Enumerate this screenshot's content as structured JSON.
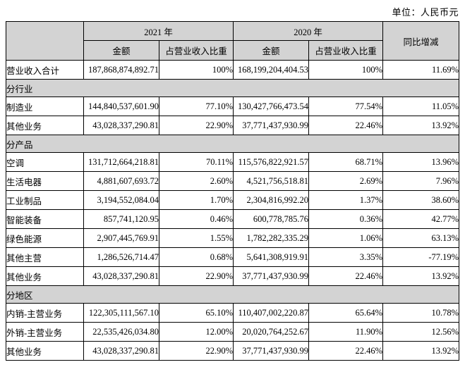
{
  "unit_label": "单位：人民币元",
  "table": {
    "col_headers": {
      "year_2021": "2021 年",
      "year_2020": "2020 年",
      "amount_2021": "金额",
      "share_2021": "占营业收入比重",
      "amount_2020": "金额",
      "share_2020": "占营业收入比重",
      "yoy": "同比增减"
    },
    "colors": {
      "header_bg": "#d3d3d3",
      "section_bg": "#d3d3d3",
      "border": "#000000"
    },
    "rows": [
      {
        "type": "data",
        "label": "营业收入合计",
        "amount_2021": "187,868,874,892.71",
        "share_2021": "100%",
        "amount_2020": "168,199,204,404.53",
        "share_2020": "100%",
        "yoy": "11.69%"
      },
      {
        "type": "section",
        "label": "分行业"
      },
      {
        "type": "data",
        "label": "制造业",
        "amount_2021": "144,840,537,601.90",
        "share_2021": "77.10%",
        "amount_2020": "130,427,766,473.54",
        "share_2020": "77.54%",
        "yoy": "11.05%"
      },
      {
        "type": "data",
        "label": "其他业务",
        "amount_2021": "43,028,337,290.81",
        "share_2021": "22.90%",
        "amount_2020": "37,771,437,930.99",
        "share_2020": "22.46%",
        "yoy": "13.92%"
      },
      {
        "type": "section",
        "label": "分产品"
      },
      {
        "type": "data",
        "label": "空调",
        "amount_2021": "131,712,664,218.81",
        "share_2021": "70.11%",
        "amount_2020": "115,576,822,921.57",
        "share_2020": "68.71%",
        "yoy": "13.96%"
      },
      {
        "type": "data",
        "label": "生活电器",
        "amount_2021": "4,881,607,693.72",
        "share_2021": "2.60%",
        "amount_2020": "4,521,756,518.81",
        "share_2020": "2.69%",
        "yoy": "7.96%"
      },
      {
        "type": "data",
        "label": "工业制品",
        "amount_2021": "3,194,552,084.04",
        "share_2021": "1.70%",
        "amount_2020": "2,304,816,992.20",
        "share_2020": "1.37%",
        "yoy": "38.60%"
      },
      {
        "type": "data",
        "label": "智能装备",
        "amount_2021": "857,741,120.95",
        "share_2021": "0.46%",
        "amount_2020": "600,778,785.76",
        "share_2020": "0.36%",
        "yoy": "42.77%"
      },
      {
        "type": "data",
        "label": "绿色能源",
        "amount_2021": "2,907,445,769.91",
        "share_2021": "1.55%",
        "amount_2020": "1,782,282,335.29",
        "share_2020": "1.06%",
        "yoy": "63.13%"
      },
      {
        "type": "data",
        "label": "其他主营",
        "amount_2021": "1,286,526,714.47",
        "share_2021": "0.68%",
        "amount_2020": "5,641,308,919.91",
        "share_2020": "3.35%",
        "yoy": "-77.19%"
      },
      {
        "type": "data",
        "label": "其他业务",
        "amount_2021": "43,028,337,290.81",
        "share_2021": "22.90%",
        "amount_2020": "37,771,437,930.99",
        "share_2020": "22.46%",
        "yoy": "13.92%"
      },
      {
        "type": "section",
        "label": "分地区"
      },
      {
        "type": "data",
        "label": "内销-主营业务",
        "amount_2021": "122,305,111,567.10",
        "share_2021": "65.10%",
        "amount_2020": "110,407,002,220.87",
        "share_2020": "65.64%",
        "yoy": "10.78%"
      },
      {
        "type": "data",
        "label": "外销-主营业务",
        "amount_2021": "22,535,426,034.80",
        "share_2021": "12.00%",
        "amount_2020": "20,020,764,252.67",
        "share_2020": "11.90%",
        "yoy": "12.56%"
      },
      {
        "type": "data",
        "label": "其他业务",
        "amount_2021": "43,028,337,290.81",
        "share_2021": "22.90%",
        "amount_2020": "37,771,437,930.99",
        "share_2020": "22.46%",
        "yoy": "13.92%"
      }
    ]
  }
}
